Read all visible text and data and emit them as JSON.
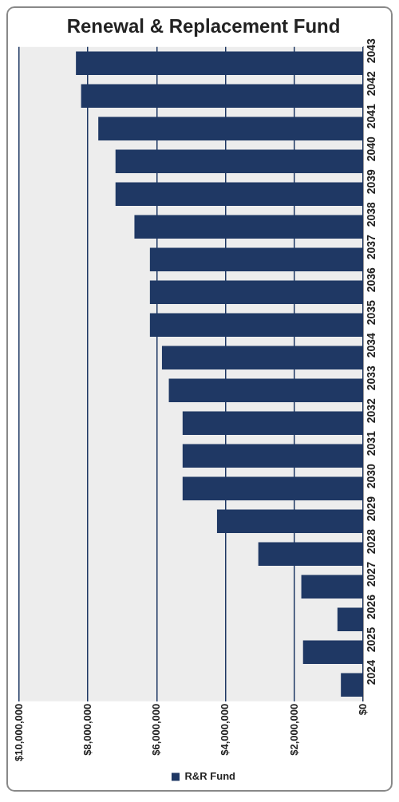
{
  "chart_data": {
    "type": "bar",
    "title": "Renewal & Replacement Fund",
    "orientation": "horizontal",
    "categories": [
      "2043",
      "2042",
      "2041",
      "2040",
      "2039",
      "2038",
      "2037",
      "2036",
      "2035",
      "2034",
      "2033",
      "2032",
      "2031",
      "2030",
      "2029",
      "2028",
      "2027",
      "2026",
      "2025",
      "2024"
    ],
    "series": [
      {
        "name": "R&R Fund",
        "color": "#1f3864",
        "values": [
          8350000,
          8200000,
          7700000,
          7200000,
          7200000,
          6650000,
          6200000,
          6200000,
          6200000,
          5850000,
          5650000,
          5250000,
          5250000,
          5250000,
          4250000,
          3050000,
          1800000,
          750000,
          1750000,
          650000
        ]
      }
    ],
    "xlim": [
      10000000,
      0
    ],
    "xticks": [
      {
        "value": 10000000,
        "label": "$10,000,000"
      },
      {
        "value": 8000000,
        "label": "$8,000,000"
      },
      {
        "value": 6000000,
        "label": "$6,000,000"
      },
      {
        "value": 4000000,
        "label": "$4,000,000"
      },
      {
        "value": 2000000,
        "label": "$2,000,000"
      },
      {
        "value": 0,
        "label": "$0"
      }
    ],
    "grid": "x",
    "legend": "bottom"
  }
}
